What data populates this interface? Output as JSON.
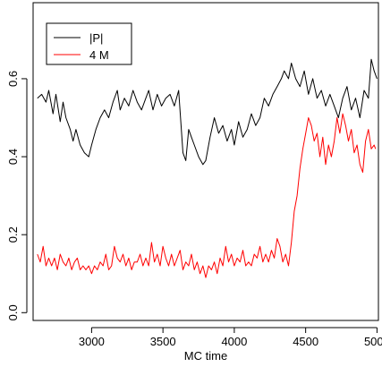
{
  "chart_data": {
    "type": "line",
    "title": "",
    "xlabel": "MC time",
    "ylabel": "",
    "xlim": [
      2590,
      5010
    ],
    "ylim": [
      -0.02,
      0.795
    ],
    "xticks": [
      3000,
      3500,
      4000,
      4500,
      5000
    ],
    "yticks": [
      0.0,
      0.2,
      0.4,
      0.6
    ],
    "x_tick_labels": [
      "3000",
      "3500",
      "4000",
      "4500",
      "5000"
    ],
    "y_tick_labels": [
      "0.0",
      "0.2",
      "0.4",
      "0.6"
    ],
    "legend_position": "top-left",
    "grid": false,
    "series": [
      {
        "name": "|P|",
        "color": "#000000",
        "x": [
          2620,
          2650,
          2680,
          2700,
          2730,
          2750,
          2780,
          2800,
          2820,
          2850,
          2870,
          2890,
          2920,
          2950,
          2980,
          3000,
          3030,
          3060,
          3090,
          3120,
          3150,
          3180,
          3200,
          3230,
          3260,
          3290,
          3320,
          3350,
          3380,
          3400,
          3430,
          3460,
          3490,
          3520,
          3550,
          3580,
          3610,
          3640,
          3660,
          3680,
          3700,
          3720,
          3750,
          3780,
          3800,
          3830,
          3860,
          3890,
          3920,
          3950,
          3980,
          4000,
          4030,
          4060,
          4090,
          4120,
          4150,
          4180,
          4210,
          4240,
          4270,
          4300,
          4330,
          4350,
          4380,
          4400,
          4430,
          4460,
          4490,
          4520,
          4550,
          4580,
          4610,
          4640,
          4670,
          4700,
          4730,
          4760,
          4790,
          4820,
          4850,
          4880,
          4910,
          4940,
          4960,
          4980,
          5000
        ],
        "values": [
          0.55,
          0.56,
          0.54,
          0.57,
          0.51,
          0.56,
          0.49,
          0.54,
          0.5,
          0.47,
          0.44,
          0.47,
          0.43,
          0.41,
          0.4,
          0.43,
          0.47,
          0.5,
          0.52,
          0.5,
          0.54,
          0.57,
          0.52,
          0.55,
          0.53,
          0.57,
          0.54,
          0.52,
          0.55,
          0.57,
          0.52,
          0.56,
          0.53,
          0.55,
          0.56,
          0.53,
          0.57,
          0.41,
          0.39,
          0.47,
          0.45,
          0.43,
          0.4,
          0.38,
          0.39,
          0.45,
          0.5,
          0.46,
          0.48,
          0.44,
          0.47,
          0.43,
          0.49,
          0.45,
          0.47,
          0.51,
          0.48,
          0.5,
          0.55,
          0.53,
          0.56,
          0.58,
          0.6,
          0.62,
          0.6,
          0.64,
          0.6,
          0.58,
          0.62,
          0.56,
          0.6,
          0.55,
          0.57,
          0.53,
          0.56,
          0.53,
          0.5,
          0.55,
          0.58,
          0.52,
          0.55,
          0.5,
          0.57,
          0.55,
          0.65,
          0.62,
          0.6
        ]
      },
      {
        "name": "4 M",
        "color": "#ff0000",
        "x": [
          2620,
          2640,
          2660,
          2680,
          2700,
          2720,
          2740,
          2760,
          2780,
          2800,
          2820,
          2840,
          2860,
          2880,
          2900,
          2920,
          2940,
          2960,
          2980,
          3000,
          3020,
          3040,
          3060,
          3080,
          3100,
          3120,
          3140,
          3160,
          3180,
          3200,
          3220,
          3240,
          3260,
          3280,
          3300,
          3320,
          3340,
          3360,
          3380,
          3400,
          3420,
          3440,
          3460,
          3480,
          3500,
          3520,
          3540,
          3560,
          3580,
          3600,
          3620,
          3640,
          3660,
          3680,
          3700,
          3720,
          3740,
          3760,
          3780,
          3800,
          3820,
          3840,
          3860,
          3880,
          3900,
          3920,
          3940,
          3960,
          3980,
          4000,
          4020,
          4040,
          4060,
          4080,
          4100,
          4120,
          4140,
          4160,
          4180,
          4200,
          4220,
          4240,
          4260,
          4280,
          4300,
          4320,
          4340,
          4360,
          4380,
          4400,
          4420,
          4440,
          4460,
          4480,
          4500,
          4520,
          4540,
          4560,
          4580,
          4600,
          4620,
          4640,
          4660,
          4680,
          4700,
          4720,
          4740,
          4760,
          4780,
          4800,
          4820,
          4840,
          4860,
          4880,
          4900,
          4920,
          4940,
          4960,
          4980,
          4990
        ],
        "values": [
          0.15,
          0.13,
          0.17,
          0.12,
          0.14,
          0.12,
          0.14,
          0.11,
          0.15,
          0.13,
          0.12,
          0.14,
          0.11,
          0.13,
          0.14,
          0.11,
          0.12,
          0.11,
          0.12,
          0.1,
          0.12,
          0.11,
          0.13,
          0.12,
          0.15,
          0.11,
          0.12,
          0.17,
          0.14,
          0.13,
          0.15,
          0.12,
          0.14,
          0.11,
          0.13,
          0.13,
          0.15,
          0.12,
          0.14,
          0.12,
          0.18,
          0.13,
          0.15,
          0.12,
          0.17,
          0.14,
          0.12,
          0.15,
          0.12,
          0.14,
          0.16,
          0.11,
          0.13,
          0.12,
          0.15,
          0.11,
          0.13,
          0.1,
          0.12,
          0.09,
          0.12,
          0.11,
          0.13,
          0.1,
          0.14,
          0.12,
          0.17,
          0.13,
          0.15,
          0.12,
          0.14,
          0.13,
          0.16,
          0.12,
          0.13,
          0.12,
          0.15,
          0.14,
          0.17,
          0.13,
          0.15,
          0.13,
          0.16,
          0.14,
          0.19,
          0.17,
          0.13,
          0.15,
          0.12,
          0.18,
          0.26,
          0.3,
          0.37,
          0.42,
          0.46,
          0.5,
          0.48,
          0.44,
          0.46,
          0.4,
          0.45,
          0.38,
          0.43,
          0.4,
          0.44,
          0.5,
          0.46,
          0.51,
          0.48,
          0.44,
          0.47,
          0.41,
          0.43,
          0.38,
          0.36,
          0.44,
          0.47,
          0.42,
          0.43,
          0.42
        ]
      }
    ]
  }
}
